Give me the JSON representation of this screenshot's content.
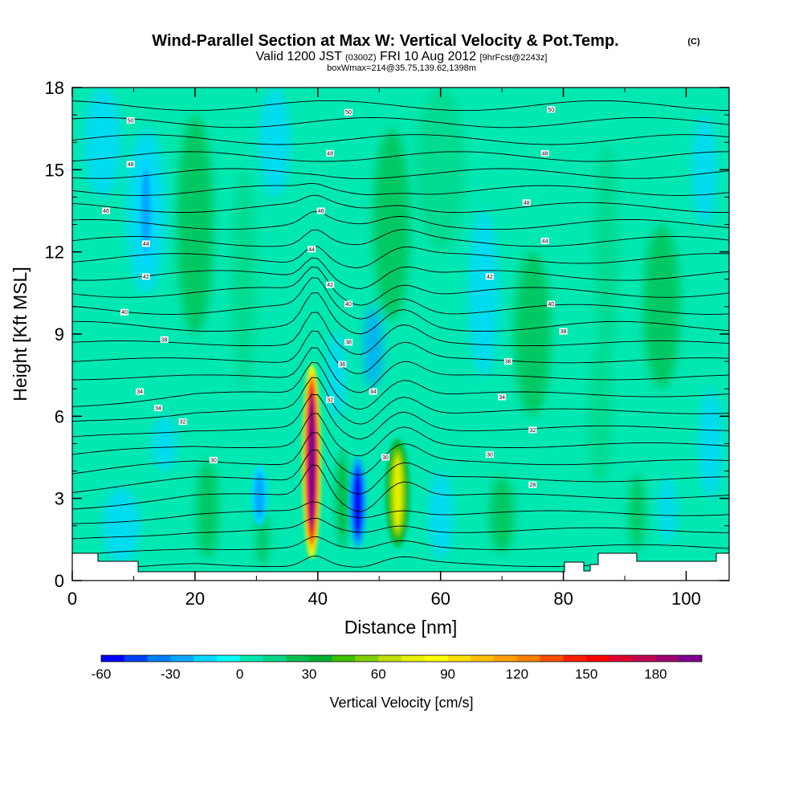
{
  "title": {
    "main": "Wind-Parallel Section at Max W: Vertical Velocity & Pot.Temp.",
    "main_suffix": "(C)",
    "valid_prefix": "Valid 1200 JST",
    "valid_utc": "(0300Z)",
    "valid_date": "FRI 10 Aug 2012",
    "forecast": "[9hrFcst@2243z]",
    "subline": "boxWmax=214@35.75,139.62,1398m"
  },
  "colors": {
    "field_base": "#00e8b2",
    "contour_line": "#000000",
    "terrain": "#ffffff"
  },
  "chart_data": {
    "type": "heatmap",
    "xlabel": "Distance [nm]",
    "ylabel": "Height [Kft MSL]",
    "xlim": [
      0,
      107
    ],
    "ylim": [
      0,
      18
    ],
    "xticks": [
      "0",
      "20",
      "40",
      "60",
      "80",
      "100"
    ],
    "yticks": [
      "0",
      "3",
      "6",
      "9",
      "12",
      "15",
      "18"
    ],
    "grid": false,
    "colorbar": {
      "label": "Vertical Velocity [cm/s]",
      "range": [
        -60,
        200
      ],
      "tick_labels": [
        "-60",
        "-30",
        "0",
        "30",
        "60",
        "90",
        "120",
        "150",
        "180"
      ],
      "colors": [
        "#0000ff",
        "#0040ff",
        "#0080ff",
        "#00a8ff",
        "#00d8ff",
        "#00ffff",
        "#00e8b2",
        "#00d78a",
        "#00c050",
        "#00b030",
        "#40c000",
        "#80d000",
        "#c0e000",
        "#e8f000",
        "#ffff00",
        "#ffe000",
        "#ffc000",
        "#ffa000",
        "#ff8000",
        "#ff5000",
        "#ff2000",
        "#ff0000",
        "#e00030",
        "#c00050",
        "#a00070",
        "#800090"
      ]
    },
    "updrafts": [
      {
        "x_nm": 39,
        "base_kft": 0.8,
        "top_kft": 7.9,
        "peak_cms": 214
      },
      {
        "x_nm": 53,
        "base_kft": 1.2,
        "top_kft": 5.2,
        "peak_cms": 75
      },
      {
        "x_nm": 44,
        "base_kft": 1.0,
        "top_kft": 5.0,
        "peak_cms": 25
      }
    ],
    "downdrafts": [
      {
        "x_nm": 46.5,
        "base_kft": 1.2,
        "top_kft": 4.5,
        "peak_cms": -60
      },
      {
        "x_nm": 30.5,
        "base_kft": 2.0,
        "top_kft": 4.2,
        "peak_cms": -30
      },
      {
        "x_nm": 12,
        "base_kft": 11.5,
        "top_kft": 15.5,
        "peak_cms": -30
      }
    ],
    "theta_labels": [
      {
        "x_nm": 9.5,
        "y_kft": 16.8,
        "label": "50"
      },
      {
        "x_nm": 45,
        "y_kft": 17.1,
        "label": "50"
      },
      {
        "x_nm": 78,
        "y_kft": 17.2,
        "label": "50"
      },
      {
        "x_nm": 9.5,
        "y_kft": 15.2,
        "label": "48"
      },
      {
        "x_nm": 42,
        "y_kft": 15.6,
        "label": "48"
      },
      {
        "x_nm": 77,
        "y_kft": 15.6,
        "label": "48"
      },
      {
        "x_nm": 74,
        "y_kft": 13.8,
        "label": "48"
      },
      {
        "x_nm": 5.5,
        "y_kft": 13.5,
        "label": "46"
      },
      {
        "x_nm": 40.5,
        "y_kft": 13.5,
        "label": "46"
      },
      {
        "x_nm": 12,
        "y_kft": 12.3,
        "label": "44"
      },
      {
        "x_nm": 39,
        "y_kft": 12.1,
        "label": "44"
      },
      {
        "x_nm": 77,
        "y_kft": 12.4,
        "label": "44"
      },
      {
        "x_nm": 12,
        "y_kft": 11.1,
        "label": "42"
      },
      {
        "x_nm": 42,
        "y_kft": 10.8,
        "label": "42"
      },
      {
        "x_nm": 68,
        "y_kft": 11.1,
        "label": "42"
      },
      {
        "x_nm": 8.5,
        "y_kft": 9.8,
        "label": "40"
      },
      {
        "x_nm": 45,
        "y_kft": 10.1,
        "label": "40"
      },
      {
        "x_nm": 78,
        "y_kft": 10.1,
        "label": "40"
      },
      {
        "x_nm": 15,
        "y_kft": 8.8,
        "label": "38"
      },
      {
        "x_nm": 45,
        "y_kft": 8.7,
        "label": "38"
      },
      {
        "x_nm": 80,
        "y_kft": 9.1,
        "label": "38"
      },
      {
        "x_nm": 44,
        "y_kft": 7.9,
        "label": "36"
      },
      {
        "x_nm": 71,
        "y_kft": 8.0,
        "label": "36"
      },
      {
        "x_nm": 11,
        "y_kft": 6.9,
        "label": "34"
      },
      {
        "x_nm": 49,
        "y_kft": 6.9,
        "label": "34"
      },
      {
        "x_nm": 70,
        "y_kft": 6.7,
        "label": "34"
      },
      {
        "x_nm": 14,
        "y_kft": 6.3,
        "label": "34"
      },
      {
        "x_nm": 42,
        "y_kft": 6.6,
        "label": "32"
      },
      {
        "x_nm": 75,
        "y_kft": 5.5,
        "label": "32"
      },
      {
        "x_nm": 18,
        "y_kft": 5.8,
        "label": "32"
      },
      {
        "x_nm": 23,
        "y_kft": 4.4,
        "label": "30"
      },
      {
        "x_nm": 51,
        "y_kft": 4.5,
        "label": "30"
      },
      {
        "x_nm": 68,
        "y_kft": 4.6,
        "label": "30"
      },
      {
        "x_nm": 75,
        "y_kft": 3.5,
        "label": "28"
      }
    ]
  }
}
